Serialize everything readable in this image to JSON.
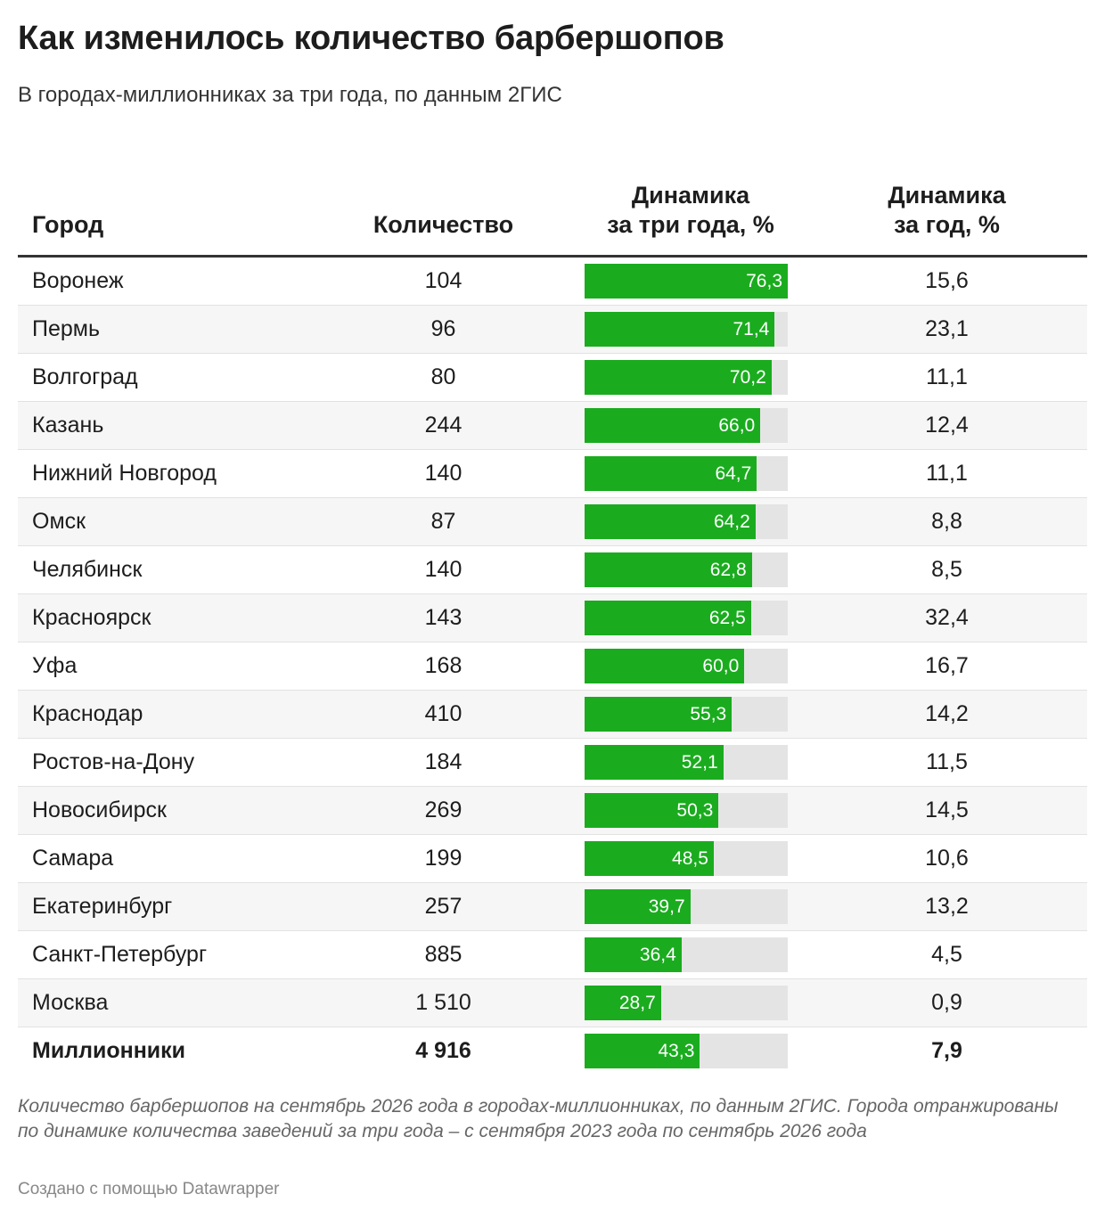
{
  "title": "Как изменилось количество барбершопов",
  "subtitle": "В городах-миллионниках за три года, по данным 2ГИС",
  "accent_color": "#1aac1e",
  "bar_bg_color": "#e4e4e4",
  "columns": {
    "city": "Город",
    "count": "Количество",
    "three_line1": "Динамика",
    "three_line2": "за три года, %",
    "year_line1": "Динамика",
    "year_line2": "за год, %"
  },
  "chart_data": {
    "type": "table",
    "bar_max": 76.3,
    "rows": [
      {
        "city": "Воронеж",
        "count": "104",
        "three_year": 76.3,
        "three_year_label": "76,3",
        "year": "15,6"
      },
      {
        "city": "Пермь",
        "count": "96",
        "three_year": 71.4,
        "three_year_label": "71,4",
        "year": "23,1"
      },
      {
        "city": "Волгоград",
        "count": "80",
        "three_year": 70.2,
        "three_year_label": "70,2",
        "year": "11,1"
      },
      {
        "city": "Казань",
        "count": "244",
        "three_year": 66.0,
        "three_year_label": "66,0",
        "year": "12,4"
      },
      {
        "city": "Нижний Новгород",
        "count": "140",
        "three_year": 64.7,
        "three_year_label": "64,7",
        "year": "11,1"
      },
      {
        "city": "Омск",
        "count": "87",
        "three_year": 64.2,
        "three_year_label": "64,2",
        "year": "8,8"
      },
      {
        "city": "Челябинск",
        "count": "140",
        "three_year": 62.8,
        "three_year_label": "62,8",
        "year": "8,5"
      },
      {
        "city": "Красноярск",
        "count": "143",
        "three_year": 62.5,
        "three_year_label": "62,5",
        "year": "32,4"
      },
      {
        "city": "Уфа",
        "count": "168",
        "three_year": 60.0,
        "three_year_label": "60,0",
        "year": "16,7"
      },
      {
        "city": "Краснодар",
        "count": "410",
        "three_year": 55.3,
        "three_year_label": "55,3",
        "year": "14,2"
      },
      {
        "city": "Ростов-на-Дону",
        "count": "184",
        "three_year": 52.1,
        "three_year_label": "52,1",
        "year": "11,5"
      },
      {
        "city": "Новосибирск",
        "count": "269",
        "three_year": 50.3,
        "three_year_label": "50,3",
        "year": "14,5"
      },
      {
        "city": "Самара",
        "count": "199",
        "three_year": 48.5,
        "three_year_label": "48,5",
        "year": "10,6"
      },
      {
        "city": "Екатеринбург",
        "count": "257",
        "three_year": 39.7,
        "three_year_label": "39,7",
        "year": "13,2"
      },
      {
        "city": "Санкт-Петербург",
        "count": "885",
        "three_year": 36.4,
        "three_year_label": "36,4",
        "year": "4,5"
      },
      {
        "city": "Москва",
        "count": "1 510",
        "three_year": 28.7,
        "three_year_label": "28,7",
        "year": "0,9"
      },
      {
        "city": "Миллионники",
        "count": "4 916",
        "three_year": 43.3,
        "three_year_label": "43,3",
        "year": "7,9",
        "total": true
      }
    ]
  },
  "note": "Количество барбершопов на сентябрь 2026 года в городах-миллионниках, по данным 2ГИС. Города отранжированы по динамике количества заведений за три года – с сентября 2023 года по сентябрь 2026 года",
  "credit": "Создано с помощью Datawrapper"
}
